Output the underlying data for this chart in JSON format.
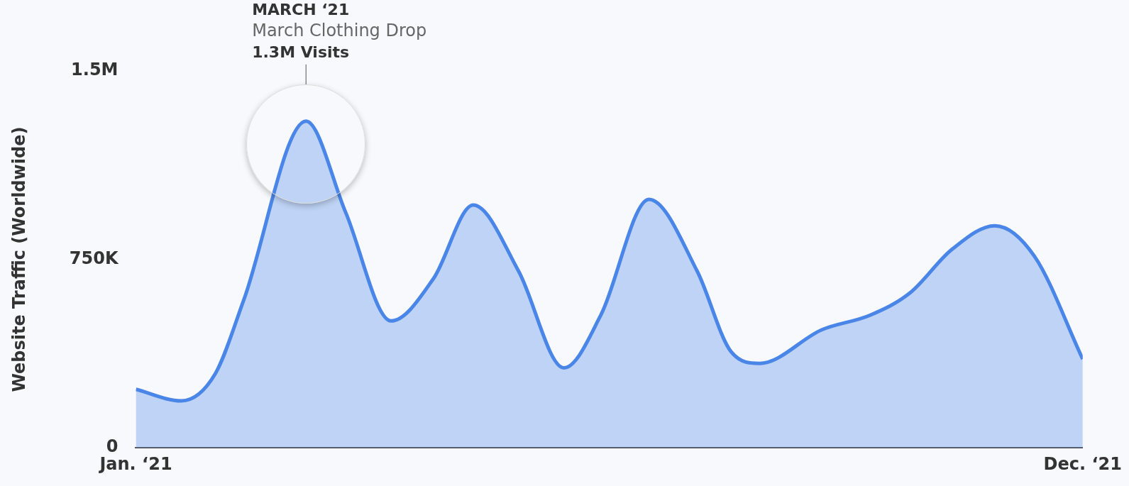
{
  "chart_data": {
    "type": "area",
    "ylabel": "Website Traffic (Worldwide)",
    "x": [
      "2021-01-01",
      "2021-01-17",
      "2021-01-29",
      "2021-02-08",
      "2021-03-02",
      "2021-03-16",
      "2021-04-01",
      "2021-04-16",
      "2021-04-30",
      "2021-05-16",
      "2021-06-01",
      "2021-06-14",
      "2021-07-01",
      "2021-07-18",
      "2021-07-30",
      "2021-08-09",
      "2021-08-31",
      "2021-09-17",
      "2021-10-01",
      "2021-10-16",
      "2021-10-31",
      "2021-11-14",
      "2021-12-01"
    ],
    "xlim": [
      "2021-01-01",
      "2021-12-01"
    ],
    "xticks": [
      {
        "value": "2021-01-01",
        "label": "Jan. ‘21"
      },
      {
        "value": "2021-12-01",
        "label": "Dec. ‘21"
      }
    ],
    "series": [
      {
        "color": "#4a86e8",
        "values": [
          233000,
          187000,
          295000,
          587000,
          1300000,
          937000,
          505000,
          674000,
          966000,
          703000,
          318000,
          528000,
          989000,
          703000,
          382000,
          336000,
          470000,
          528000,
          616000,
          791000,
          884000,
          762000,
          353000
        ]
      }
    ],
    "ylim": [
      0,
      1500000
    ],
    "yticks": [
      0,
      {
        "value": 750000,
        "label": "750K"
      },
      {
        "value": 1500000,
        "label": "1.5M"
      }
    ],
    "grid": false,
    "legend": false,
    "marker": "none",
    "annotations": [
      "MARCH ‘21\nMarch Clothing Drop\n1.3M Visits"
    ]
  }
}
